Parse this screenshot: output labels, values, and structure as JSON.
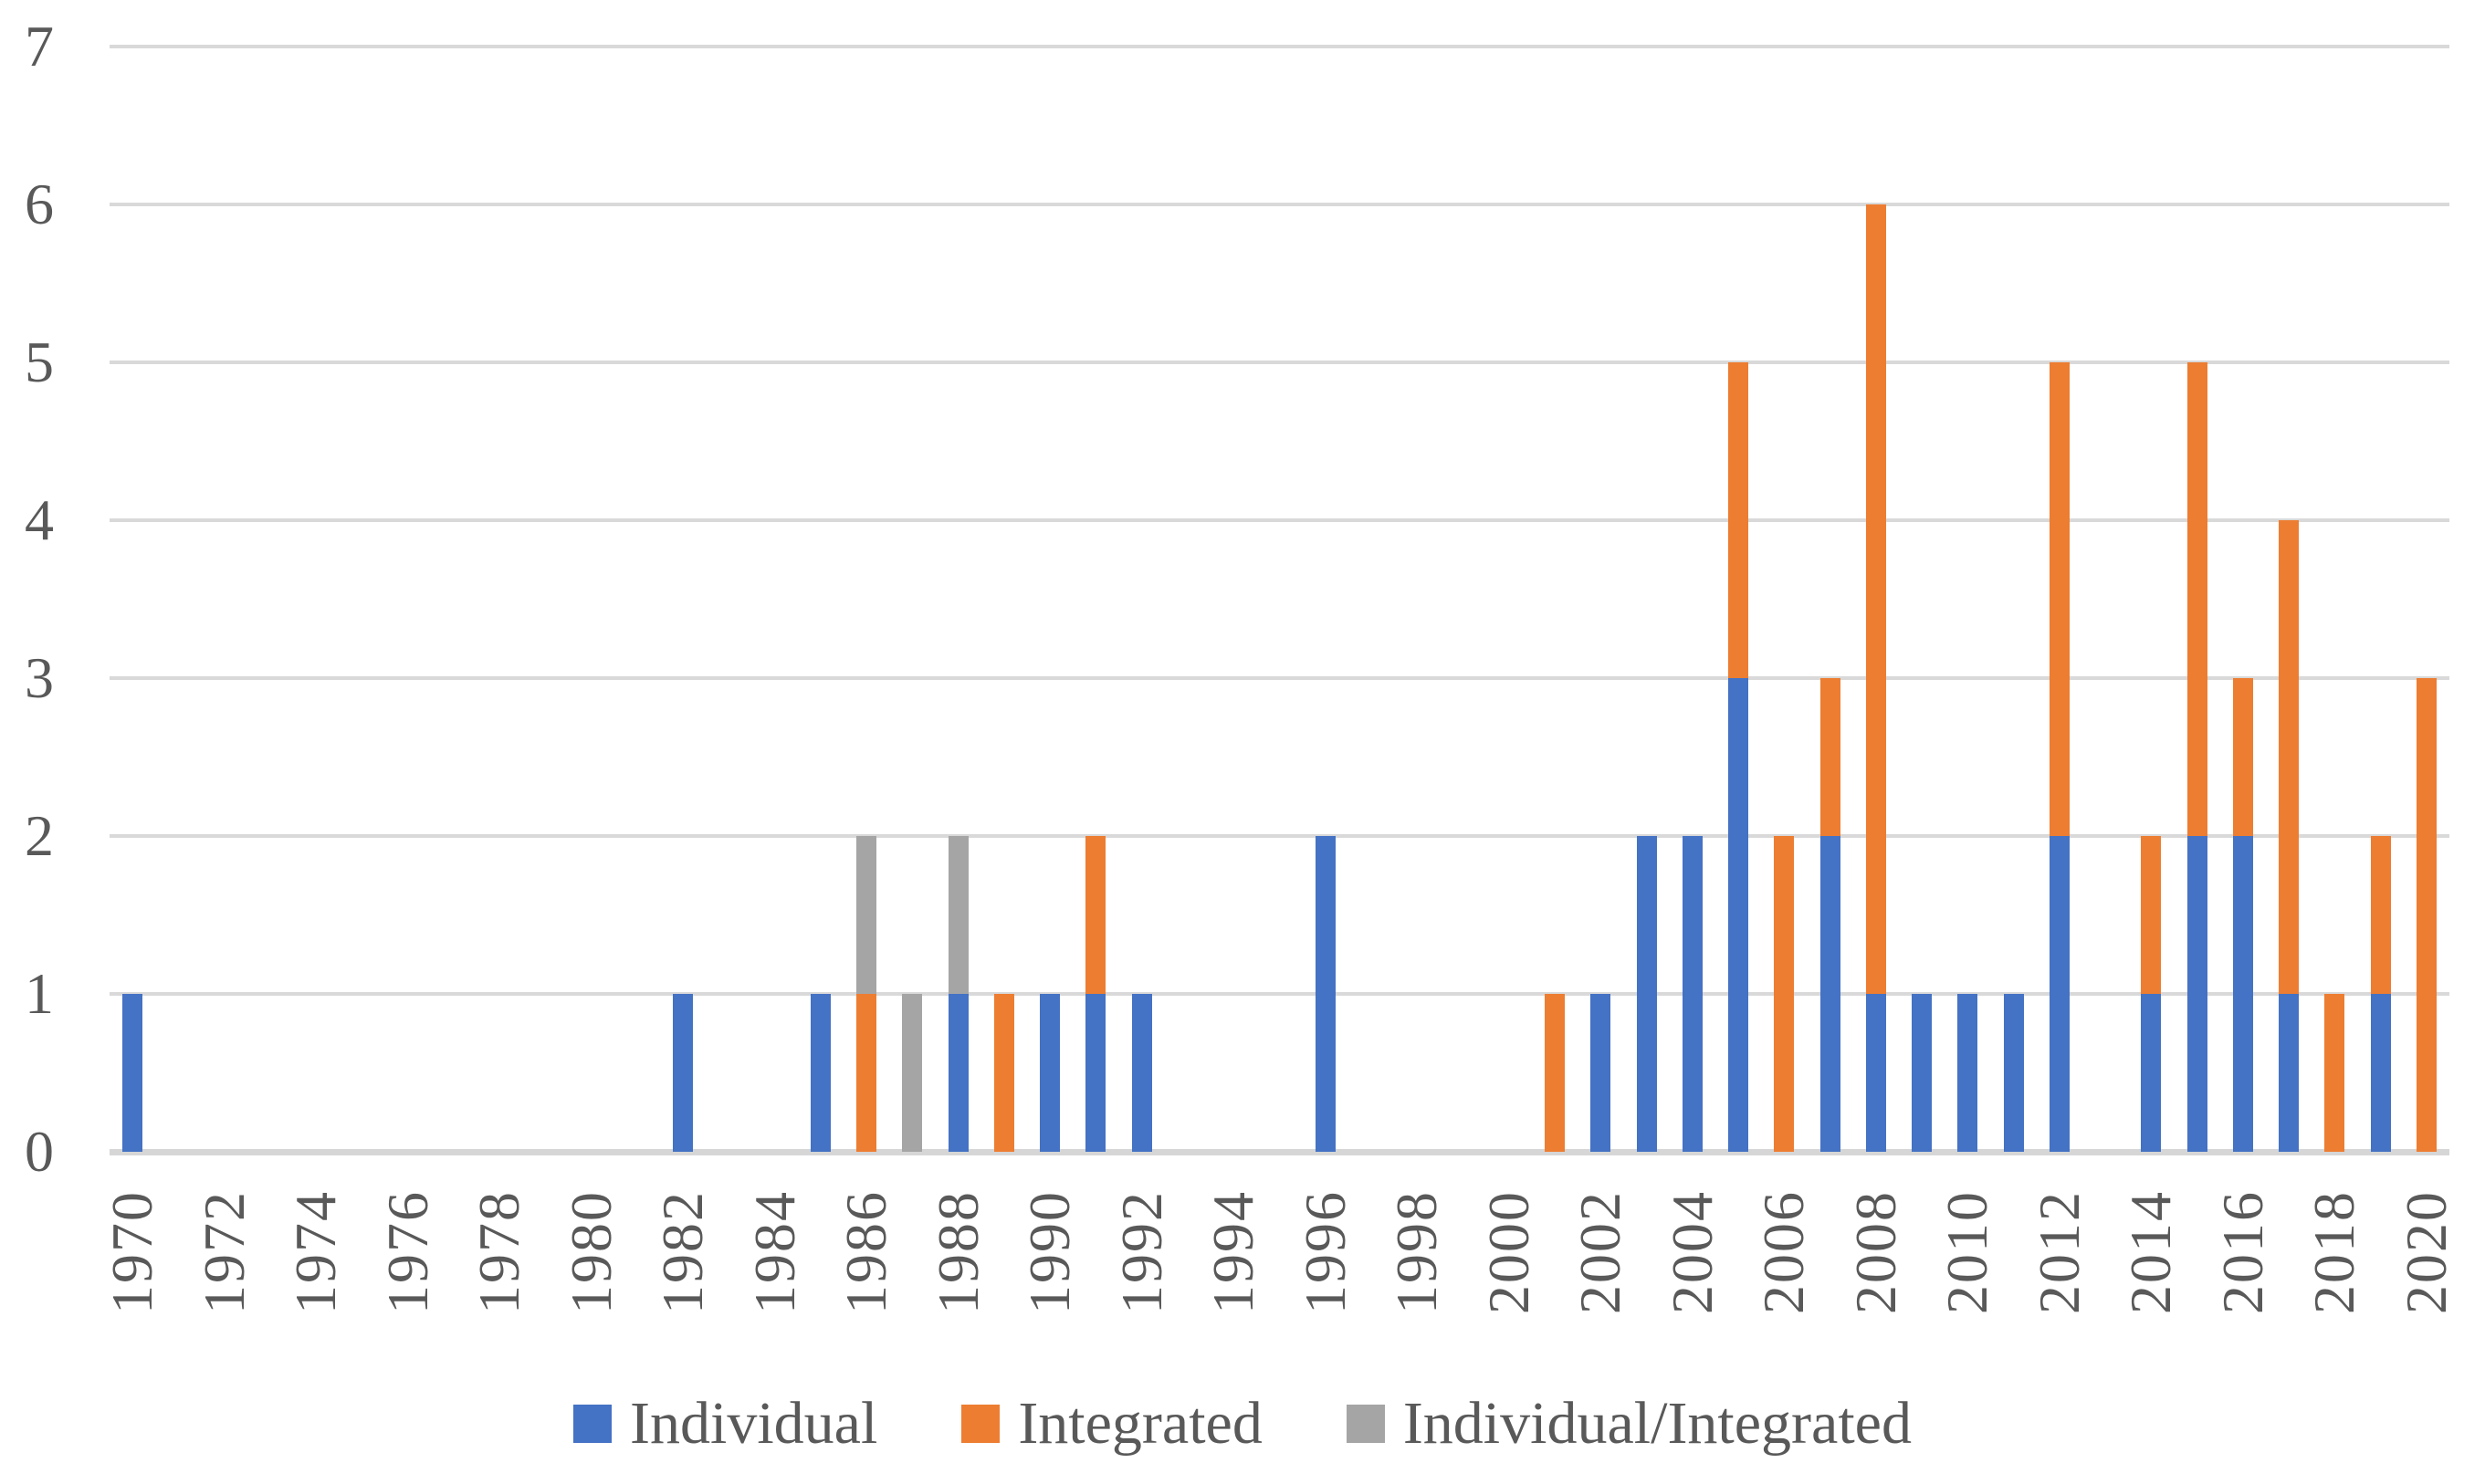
{
  "chart_data": {
    "type": "bar",
    "stacked": true,
    "title": "",
    "xlabel": "",
    "ylabel": "",
    "categories": [
      1970,
      1971,
      1972,
      1973,
      1974,
      1975,
      1976,
      1977,
      1978,
      1979,
      1980,
      1981,
      1982,
      1983,
      1984,
      1985,
      1986,
      1987,
      1988,
      1989,
      1990,
      1991,
      1992,
      1993,
      1994,
      1995,
      1996,
      1997,
      1998,
      1999,
      2000,
      2001,
      2002,
      2003,
      2004,
      2005,
      2006,
      2007,
      2008,
      2009,
      2010,
      2011,
      2012,
      2013,
      2014,
      2015,
      2016,
      2017,
      2018,
      2019,
      2020
    ],
    "x_tick_labels": [
      "1970",
      "1972",
      "1974",
      "1976",
      "1978",
      "1980",
      "1982",
      "1984",
      "1986",
      "1988",
      "1990",
      "1992",
      "1994",
      "1996",
      "1998",
      "2000",
      "2002",
      "2004",
      "2006",
      "2008",
      "2010",
      "2012",
      "2014",
      "2016",
      "2018",
      "2020"
    ],
    "series": [
      {
        "name": "Individual",
        "color": "#4472C4",
        "values": [
          1,
          0,
          0,
          0,
          0,
          0,
          0,
          0,
          0,
          0,
          0,
          0,
          1,
          0,
          0,
          1,
          0,
          0,
          1,
          0,
          1,
          1,
          1,
          0,
          0,
          0,
          2,
          0,
          0,
          0,
          0,
          0,
          1,
          2,
          2,
          3,
          0,
          2,
          1,
          1,
          1,
          1,
          2,
          0,
          1,
          2,
          2,
          1,
          0,
          1,
          0
        ]
      },
      {
        "name": "Integrated",
        "color": "#ED7D31",
        "values": [
          0,
          0,
          0,
          0,
          0,
          0,
          0,
          0,
          0,
          0,
          0,
          0,
          0,
          0,
          0,
          0,
          1,
          0,
          0,
          1,
          0,
          1,
          0,
          0,
          0,
          0,
          0,
          0,
          0,
          0,
          0,
          1,
          0,
          0,
          0,
          2,
          2,
          1,
          5,
          0,
          0,
          0,
          3,
          0,
          1,
          3,
          1,
          3,
          1,
          1,
          3
        ]
      },
      {
        "name": "Individual/Integrated",
        "color": "#A5A5A5",
        "values": [
          0,
          0,
          0,
          0,
          0,
          0,
          0,
          0,
          0,
          0,
          0,
          0,
          0,
          0,
          0,
          0,
          1,
          1,
          1,
          0,
          0,
          0,
          0,
          0,
          0,
          0,
          0,
          0,
          0,
          0,
          0,
          0,
          0,
          0,
          0,
          0,
          0,
          0,
          0,
          0,
          0,
          0,
          0,
          0,
          0,
          0,
          0,
          0,
          0,
          0,
          0
        ]
      }
    ],
    "ylim": [
      0,
      7
    ],
    "y_ticks": [
      "0",
      "1",
      "2",
      "3",
      "4",
      "5",
      "6",
      "7"
    ],
    "grid": true,
    "legend_position": "bottom"
  },
  "legend": {
    "items": [
      {
        "label": "Individual",
        "color": "#4472C4"
      },
      {
        "label": "Integrated",
        "color": "#ED7D31"
      },
      {
        "label": "Individual/Integrated",
        "color": "#A5A5A5"
      }
    ]
  },
  "colors": {
    "text": "#595959",
    "gridline": "#D9D9D9",
    "axis_line": "#D6D6D6",
    "background": "#FFFFFF"
  }
}
